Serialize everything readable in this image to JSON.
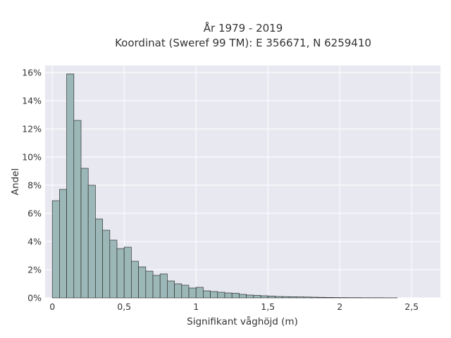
{
  "chart_data": {
    "type": "bar",
    "title": "År 1979 - 2019",
    "subtitle": "Koordinat (Sweref 99 TM): E 356671, N 6259410",
    "xlabel": "Signifikant våghöjd (m)",
    "ylabel": "Andel",
    "bin_width": 0.05,
    "x_start": 0,
    "xlim": [
      -0.05,
      2.7
    ],
    "ylim": [
      0,
      0.165
    ],
    "x_ticks": [
      {
        "value": 0,
        "label": "0"
      },
      {
        "value": 0.5,
        "label": "0,5"
      },
      {
        "value": 1,
        "label": "1"
      },
      {
        "value": 1.5,
        "label": "1,5"
      },
      {
        "value": 2,
        "label": "2"
      },
      {
        "value": 2.5,
        "label": "2,5"
      }
    ],
    "y_ticks": [
      {
        "value": 0,
        "label": "0%"
      },
      {
        "value": 0.02,
        "label": "2%"
      },
      {
        "value": 0.04,
        "label": "4%"
      },
      {
        "value": 0.06,
        "label": "6%"
      },
      {
        "value": 0.08,
        "label": "8%"
      },
      {
        "value": 0.1,
        "label": "10%"
      },
      {
        "value": 0.12,
        "label": "12%"
      },
      {
        "value": 0.14,
        "label": "14%"
      },
      {
        "value": 0.16,
        "label": "16%"
      }
    ],
    "values": [
      0.069,
      0.077,
      0.159,
      0.126,
      0.092,
      0.08,
      0.056,
      0.048,
      0.041,
      0.035,
      0.036,
      0.026,
      0.022,
      0.019,
      0.016,
      0.017,
      0.012,
      0.01,
      0.009,
      0.007,
      0.0075,
      0.005,
      0.0045,
      0.004,
      0.0035,
      0.0033,
      0.0025,
      0.002,
      0.0018,
      0.0015,
      0.0013,
      0.001,
      0.0009,
      0.0008,
      0.0007,
      0.0006,
      0.0005,
      0.0004,
      0.0003,
      0.00025,
      0.0002,
      0.00015,
      0.00015,
      0.0001,
      0.0001,
      0.0001,
      5e-05,
      5e-05
    ],
    "grid": true,
    "colors": {
      "plot_background": "#e8e8f0",
      "grid": "#ffffff",
      "bar_fill": "#9bb7b7",
      "bar_edge": "#333333",
      "text": "#333333"
    }
  }
}
